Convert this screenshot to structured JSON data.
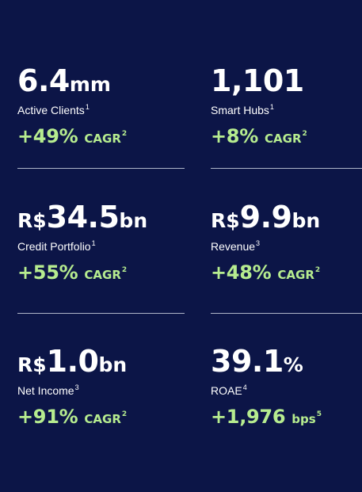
{
  "metrics": [
    {
      "prefix": "",
      "value": "6.4",
      "suffix": "mm",
      "label": "Active Clients",
      "label_note": "1",
      "growth": "+49%",
      "growth_unit": "CAGR",
      "growth_note": "2"
    },
    {
      "prefix": "",
      "value": "1,101",
      "suffix": "",
      "label": "Smart Hubs",
      "label_note": "1",
      "growth": "+8%",
      "growth_unit": "CAGR",
      "growth_note": "2"
    },
    {
      "prefix": "R$",
      "value": "34.5",
      "suffix": "bn",
      "label": "Credit Portfolio",
      "label_note": "1",
      "growth": "+55%",
      "growth_unit": "CAGR",
      "growth_note": "2"
    },
    {
      "prefix": "R$",
      "value": "9.9",
      "suffix": "bn",
      "label": "Revenue",
      "label_note": "3",
      "growth": "+48%",
      "growth_unit": "CAGR",
      "growth_note": "2"
    },
    {
      "prefix": "R$",
      "value": "1.0",
      "suffix": "bn",
      "label": "Net Income",
      "label_note": "3",
      "growth": "+91%",
      "growth_unit": "CAGR",
      "growth_note": "2"
    },
    {
      "prefix": "",
      "value": "39.1",
      "suffix": "%",
      "label": "ROAE",
      "label_note": "4",
      "growth": "+1,976",
      "growth_unit": "bps",
      "growth_note": "5"
    }
  ],
  "colors": {
    "background": "#0c1547",
    "accent_green": "#b6ec8f",
    "divider": "#aeb5c8"
  }
}
